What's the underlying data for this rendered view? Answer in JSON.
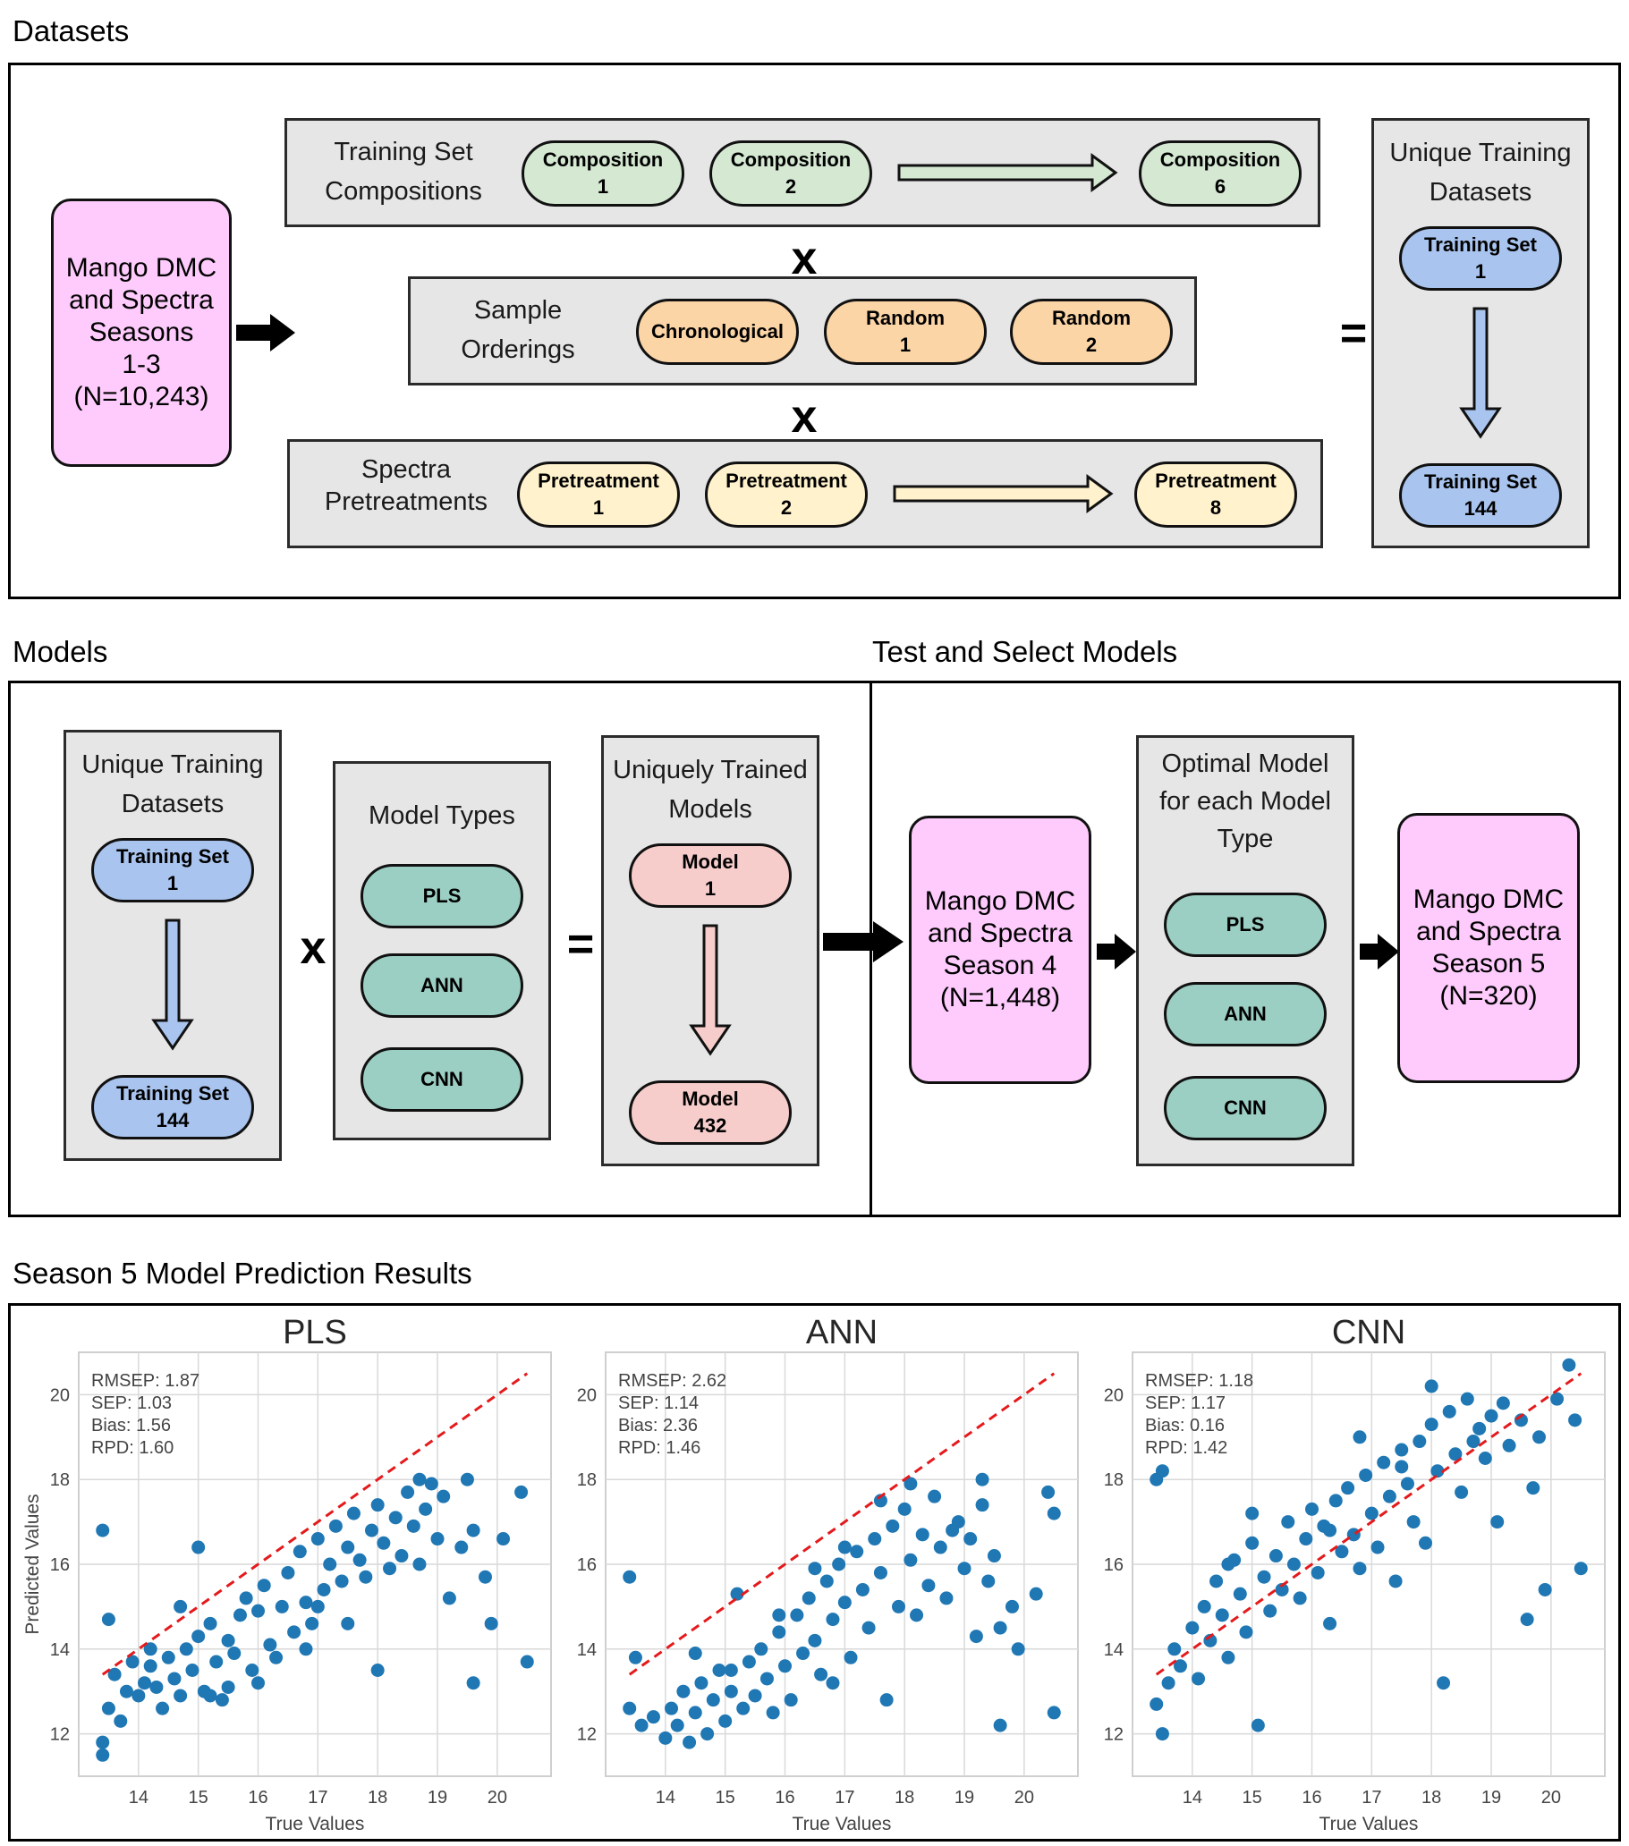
{
  "datasets": {
    "title": "Datasets",
    "source": {
      "label": "Mango DMC\nand Spectra\nSeasons\n1-3\n(N=10,243)"
    },
    "training_set_compositions": {
      "label": "Training Set\nCompositions",
      "items": [
        "Composition\n1",
        "Composition\n2",
        "Composition\n6"
      ]
    },
    "sample_orderings": {
      "label": "Sample\nOrderings",
      "items": [
        "Chronological",
        "Random\n1",
        "Random\n2"
      ]
    },
    "spectra_pretreatments": {
      "label": "Spectra\nPretreatments",
      "items": [
        "Pretreatment\n1",
        "Pretreatment\n2",
        "Pretreatment\n8"
      ]
    },
    "times_symbol": "x",
    "equals_symbol": "=",
    "unique_training_datasets": {
      "label": "Unique Training\nDatasets",
      "first": "Training Set\n1",
      "last": "Training Set\n144"
    }
  },
  "models": {
    "title": "Models",
    "unique_training_datasets": {
      "label": "Unique Training\nDatasets",
      "first": "Training Set\n1",
      "last": "Training Set\n144"
    },
    "times_symbol": "x",
    "equals_symbol": "=",
    "model_types": {
      "label": "Model Types",
      "items": [
        "PLS",
        "ANN",
        "CNN"
      ]
    },
    "uniquely_trained_models": {
      "label": "Uniquely Trained\nModels",
      "first": "Model\n1",
      "last": "Model\n432"
    }
  },
  "test_select": {
    "title": "Test and Select Models",
    "season4": {
      "label": "Mango DMC\nand Spectra\nSeason 4\n(N=1,448)"
    },
    "optimal": {
      "label": "Optimal Model\nfor each Model\nType",
      "items": [
        "PLS",
        "ANN",
        "CNN"
      ]
    },
    "season5": {
      "label": "Mango DMC\nand Spectra\nSeason 5\n(N=320)"
    }
  },
  "results": {
    "title": "Season 5 Model Prediction Results",
    "colors": {
      "points": "#1f77b4",
      "identity_line": "#e41a1c",
      "grid": "#d9d9d9"
    }
  },
  "chart_data": [
    {
      "type": "scatter",
      "title": "PLS",
      "xlabel": "True Values",
      "ylabel": "Predicted Values",
      "xlim": [
        13.0,
        20.9
      ],
      "ylim": [
        11.0,
        21.0
      ],
      "xticks": [
        14,
        15,
        16,
        17,
        18,
        19,
        20
      ],
      "yticks": [
        12,
        14,
        16,
        18,
        20
      ],
      "grid": true,
      "stats": [
        "RMSEP: 1.87",
        "SEP: 1.03",
        "Bias: 1.56",
        "RPD: 1.60"
      ],
      "identity_line": [
        [
          13.4,
          13.4
        ],
        [
          20.5,
          20.5
        ]
      ],
      "points": [
        [
          13.4,
          16.8
        ],
        [
          13.5,
          14.7
        ],
        [
          13.4,
          11.8
        ],
        [
          13.4,
          11.5
        ],
        [
          13.5,
          12.6
        ],
        [
          13.7,
          12.3
        ],
        [
          13.6,
          13.4
        ],
        [
          13.8,
          13.0
        ],
        [
          14.0,
          12.9
        ],
        [
          14.1,
          13.2
        ],
        [
          14.2,
          13.6
        ],
        [
          14.3,
          13.1
        ],
        [
          14.4,
          12.6
        ],
        [
          14.5,
          13.8
        ],
        [
          14.6,
          13.3
        ],
        [
          14.7,
          12.9
        ],
        [
          14.8,
          14.0
        ],
        [
          14.9,
          13.5
        ],
        [
          15.0,
          14.3
        ],
        [
          15.1,
          13.0
        ],
        [
          15.2,
          14.6
        ],
        [
          15.3,
          13.7
        ],
        [
          15.4,
          12.8
        ],
        [
          15.5,
          14.2
        ],
        [
          15.6,
          13.9
        ],
        [
          15.7,
          14.8
        ],
        [
          15.8,
          15.2
        ],
        [
          15.9,
          13.5
        ],
        [
          16.0,
          14.9
        ],
        [
          16.1,
          15.5
        ],
        [
          16.2,
          14.1
        ],
        [
          16.3,
          13.8
        ],
        [
          16.4,
          15.0
        ],
        [
          16.5,
          15.8
        ],
        [
          16.6,
          14.4
        ],
        [
          16.7,
          16.3
        ],
        [
          16.8,
          15.1
        ],
        [
          16.9,
          14.6
        ],
        [
          17.0,
          16.6
        ],
        [
          17.1,
          15.4
        ],
        [
          17.2,
          16.0
        ],
        [
          17.3,
          16.9
        ],
        [
          17.4,
          15.6
        ],
        [
          17.5,
          16.4
        ],
        [
          17.6,
          17.2
        ],
        [
          17.7,
          16.1
        ],
        [
          17.8,
          15.7
        ],
        [
          17.9,
          16.8
        ],
        [
          18.0,
          17.4
        ],
        [
          18.1,
          16.5
        ],
        [
          18.2,
          15.9
        ],
        [
          18.3,
          17.1
        ],
        [
          18.4,
          16.2
        ],
        [
          18.5,
          17.7
        ],
        [
          18.6,
          16.9
        ],
        [
          18.7,
          16.0
        ],
        [
          18.8,
          17.3
        ],
        [
          18.9,
          17.9
        ],
        [
          19.0,
          16.6
        ],
        [
          19.1,
          17.6
        ],
        [
          19.2,
          15.2
        ],
        [
          19.4,
          16.4
        ],
        [
          19.5,
          18.0
        ],
        [
          19.6,
          16.8
        ],
        [
          19.6,
          13.2
        ],
        [
          19.8,
          15.7
        ],
        [
          19.9,
          14.6
        ],
        [
          20.1,
          16.6
        ],
        [
          20.4,
          17.7
        ],
        [
          20.5,
          13.7
        ],
        [
          15.0,
          16.4
        ],
        [
          14.7,
          15.0
        ],
        [
          15.5,
          13.1
        ],
        [
          16.8,
          14.0
        ],
        [
          17.5,
          14.6
        ],
        [
          18.0,
          13.5
        ],
        [
          13.9,
          13.7
        ],
        [
          14.2,
          14.0
        ],
        [
          15.2,
          12.9
        ],
        [
          16.0,
          13.2
        ],
        [
          17.0,
          15.0
        ],
        [
          18.7,
          18.0
        ]
      ]
    },
    {
      "type": "scatter",
      "title": "ANN",
      "xlabel": "True Values",
      "ylabel": "",
      "xlim": [
        13.0,
        20.9
      ],
      "ylim": [
        11.0,
        21.0
      ],
      "xticks": [
        14,
        15,
        16,
        17,
        18,
        19,
        20
      ],
      "yticks": [
        12,
        14,
        16,
        18,
        20
      ],
      "grid": true,
      "stats": [
        "RMSEP: 2.62",
        "SEP: 1.14",
        "Bias: 2.36",
        "RPD: 1.46"
      ],
      "identity_line": [
        [
          13.4,
          13.4
        ],
        [
          20.5,
          20.5
        ]
      ],
      "points": [
        [
          13.4,
          15.7
        ],
        [
          13.5,
          13.8
        ],
        [
          13.4,
          12.6
        ],
        [
          13.6,
          12.2
        ],
        [
          13.8,
          12.4
        ],
        [
          14.0,
          11.9
        ],
        [
          14.1,
          12.6
        ],
        [
          14.2,
          12.2
        ],
        [
          14.3,
          13.0
        ],
        [
          14.4,
          11.8
        ],
        [
          14.5,
          12.5
        ],
        [
          14.6,
          13.2
        ],
        [
          14.7,
          12.0
        ],
        [
          14.8,
          12.8
        ],
        [
          14.9,
          13.5
        ],
        [
          15.0,
          12.3
        ],
        [
          15.1,
          13.0
        ],
        [
          15.2,
          15.3
        ],
        [
          15.3,
          12.6
        ],
        [
          15.4,
          13.7
        ],
        [
          15.5,
          12.9
        ],
        [
          15.6,
          14.0
        ],
        [
          15.7,
          13.3
        ],
        [
          15.8,
          12.5
        ],
        [
          15.9,
          14.4
        ],
        [
          16.0,
          13.6
        ],
        [
          16.1,
          12.8
        ],
        [
          16.2,
          14.8
        ],
        [
          16.3,
          13.9
        ],
        [
          16.4,
          15.2
        ],
        [
          16.5,
          14.2
        ],
        [
          16.6,
          13.4
        ],
        [
          16.7,
          15.6
        ],
        [
          16.8,
          14.7
        ],
        [
          16.9,
          16.0
        ],
        [
          17.0,
          15.1
        ],
        [
          17.1,
          13.8
        ],
        [
          17.2,
          16.3
        ],
        [
          17.3,
          15.4
        ],
        [
          17.4,
          14.5
        ],
        [
          17.5,
          16.6
        ],
        [
          17.6,
          15.8
        ],
        [
          17.7,
          12.8
        ],
        [
          17.8,
          16.9
        ],
        [
          17.9,
          15.0
        ],
        [
          18.0,
          17.3
        ],
        [
          18.1,
          16.1
        ],
        [
          18.2,
          14.8
        ],
        [
          18.3,
          16.7
        ],
        [
          18.4,
          15.5
        ],
        [
          18.5,
          17.6
        ],
        [
          18.6,
          16.4
        ],
        [
          18.7,
          15.2
        ],
        [
          18.8,
          16.8
        ],
        [
          18.9,
          17.0
        ],
        [
          19.0,
          15.9
        ],
        [
          19.1,
          16.6
        ],
        [
          19.2,
          14.3
        ],
        [
          19.3,
          17.4
        ],
        [
          19.4,
          15.6
        ],
        [
          19.5,
          16.2
        ],
        [
          19.6,
          14.5
        ],
        [
          19.6,
          12.2
        ],
        [
          19.8,
          15.0
        ],
        [
          19.9,
          14.0
        ],
        [
          20.2,
          15.3
        ],
        [
          20.4,
          17.7
        ],
        [
          20.5,
          12.5
        ],
        [
          20.5,
          17.2
        ],
        [
          16.5,
          15.9
        ],
        [
          17.0,
          16.4
        ],
        [
          17.6,
          17.5
        ],
        [
          15.9,
          14.8
        ],
        [
          16.8,
          13.2
        ],
        [
          18.1,
          17.9
        ],
        [
          19.3,
          18.0
        ],
        [
          14.5,
          13.9
        ],
        [
          15.1,
          13.5
        ]
      ]
    },
    {
      "type": "scatter",
      "title": "CNN",
      "xlabel": "True Values",
      "ylabel": "",
      "xlim": [
        13.0,
        20.9
      ],
      "ylim": [
        11.0,
        21.0
      ],
      "xticks": [
        14,
        15,
        16,
        17,
        18,
        19,
        20
      ],
      "yticks": [
        12,
        14,
        16,
        18,
        20
      ],
      "grid": true,
      "stats": [
        "RMSEP: 1.18",
        "SEP: 1.17",
        "Bias: 0.16",
        "RPD: 1.42"
      ],
      "identity_line": [
        [
          13.4,
          13.4
        ],
        [
          20.5,
          20.5
        ]
      ],
      "points": [
        [
          13.4,
          18.0
        ],
        [
          13.5,
          18.2
        ],
        [
          13.4,
          12.7
        ],
        [
          13.5,
          12.0
        ],
        [
          13.6,
          13.2
        ],
        [
          13.7,
          14.0
        ],
        [
          13.8,
          13.6
        ],
        [
          14.0,
          14.5
        ],
        [
          14.1,
          13.3
        ],
        [
          14.2,
          15.0
        ],
        [
          14.3,
          14.2
        ],
        [
          14.4,
          15.6
        ],
        [
          14.5,
          14.8
        ],
        [
          14.6,
          13.8
        ],
        [
          14.7,
          16.1
        ],
        [
          14.8,
          15.3
        ],
        [
          14.9,
          14.4
        ],
        [
          15.0,
          16.5
        ],
        [
          15.1,
          12.2
        ],
        [
          15.2,
          15.7
        ],
        [
          15.3,
          14.9
        ],
        [
          15.4,
          16.2
        ],
        [
          15.5,
          15.4
        ],
        [
          15.6,
          17.0
        ],
        [
          15.7,
          16.0
        ],
        [
          15.8,
          15.2
        ],
        [
          15.9,
          16.6
        ],
        [
          16.0,
          17.3
        ],
        [
          16.1,
          15.8
        ],
        [
          16.2,
          16.9
        ],
        [
          16.3,
          14.6
        ],
        [
          16.4,
          17.5
        ],
        [
          16.5,
          16.3
        ],
        [
          16.6,
          17.8
        ],
        [
          16.7,
          16.7
        ],
        [
          16.8,
          15.9
        ],
        [
          16.9,
          18.1
        ],
        [
          17.0,
          17.2
        ],
        [
          17.1,
          16.4
        ],
        [
          17.2,
          18.4
        ],
        [
          17.3,
          17.6
        ],
        [
          17.4,
          15.6
        ],
        [
          17.5,
          18.7
        ],
        [
          17.6,
          17.9
        ],
        [
          17.7,
          17.0
        ],
        [
          17.8,
          18.9
        ],
        [
          17.9,
          16.5
        ],
        [
          18.0,
          19.3
        ],
        [
          18.1,
          18.2
        ],
        [
          18.2,
          13.2
        ],
        [
          18.3,
          19.6
        ],
        [
          18.4,
          18.6
        ],
        [
          18.5,
          17.7
        ],
        [
          18.6,
          19.9
        ],
        [
          18.7,
          18.9
        ],
        [
          18.8,
          19.2
        ],
        [
          18.9,
          18.5
        ],
        [
          19.0,
          19.5
        ],
        [
          19.1,
          17.0
        ],
        [
          19.2,
          19.8
        ],
        [
          19.3,
          18.8
        ],
        [
          19.5,
          19.4
        ],
        [
          19.6,
          14.7
        ],
        [
          19.7,
          17.8
        ],
        [
          19.8,
          19.0
        ],
        [
          19.9,
          15.4
        ],
        [
          20.1,
          19.9
        ],
        [
          20.3,
          20.7
        ],
        [
          20.4,
          19.4
        ],
        [
          20.5,
          15.9
        ],
        [
          16.8,
          19.0
        ],
        [
          17.5,
          18.3
        ],
        [
          15.0,
          17.2
        ],
        [
          16.3,
          16.8
        ],
        [
          14.6,
          16.0
        ],
        [
          18.0,
          20.2
        ]
      ]
    }
  ]
}
